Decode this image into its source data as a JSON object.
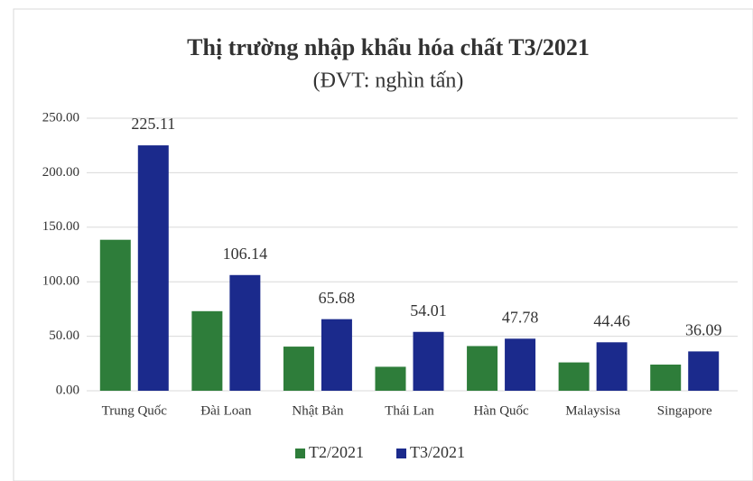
{
  "chart_data": {
    "type": "bar",
    "title": "Thị trường nhập khẩu hóa chất T3/2021",
    "subtitle": "(ĐVT: nghìn tấn)",
    "categories": [
      "Trung Quốc",
      "Đài Loan",
      "Nhật Bản",
      "Thái Lan",
      "Hàn Quốc",
      "Malaysisa",
      "Singapore"
    ],
    "series": [
      {
        "name": "T2/2021",
        "color": "#2e7d3a",
        "values": [
          138.5,
          73,
          40.5,
          22,
          41,
          26,
          24
        ]
      },
      {
        "name": "T3/2021",
        "color": "#1b2a8c",
        "values": [
          225.11,
          106.14,
          65.68,
          54.01,
          47.78,
          44.46,
          36.09
        ],
        "data_labels": true
      }
    ],
    "ylim": [
      0,
      250
    ],
    "yticks": [
      {
        "value": 0,
        "label": "0.00"
      },
      {
        "value": 50,
        "label": "50.00"
      },
      {
        "value": 100,
        "label": "100.00"
      },
      {
        "value": 150,
        "label": "150.00"
      },
      {
        "value": 200,
        "label": "200.00"
      },
      {
        "value": 250,
        "label": "250.00"
      }
    ],
    "grid": true,
    "legend": "bottom"
  }
}
